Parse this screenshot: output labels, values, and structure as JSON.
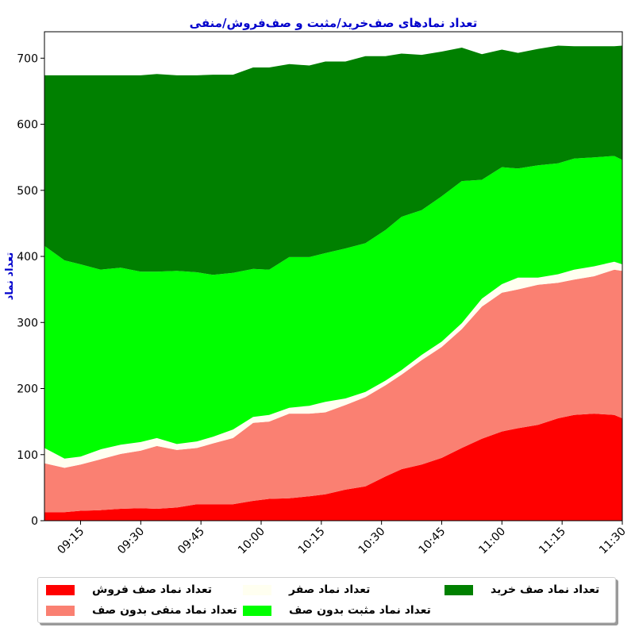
{
  "chart_data": {
    "type": "area",
    "stacked": true,
    "title": "تعداد نمادهای صف‌خرید/مثبت و صف‌فروش/منفی",
    "xlabel": "",
    "ylabel": "تعداد نماد",
    "ylim": [
      0,
      740
    ],
    "yticks": [
      0,
      100,
      200,
      300,
      400,
      500,
      600,
      700
    ],
    "xticks": [
      "09:15",
      "09:30",
      "09:45",
      "10:00",
      "10:15",
      "10:30",
      "10:45",
      "11:00",
      "11:15",
      "11:30"
    ],
    "x": [
      "09:06",
      "09:11",
      "09:15",
      "09:20",
      "09:25",
      "09:30",
      "09:34",
      "09:39",
      "09:44",
      "09:48",
      "09:53",
      "09:58",
      "10:02",
      "10:07",
      "10:12",
      "10:16",
      "10:21",
      "10:26",
      "10:31",
      "10:35",
      "10:40",
      "10:45",
      "10:50",
      "10:55",
      "11:00",
      "11:04",
      "11:09",
      "11:14",
      "11:18",
      "11:23",
      "11:28",
      "11:30"
    ],
    "series": [
      {
        "name": "تعداد نماد صف فروش",
        "color": "#ff0000",
        "values": [
          13,
          13,
          15,
          16,
          18,
          19,
          18,
          20,
          25,
          25,
          25,
          30,
          33,
          34,
          37,
          40,
          47,
          52,
          67,
          78,
          85,
          95,
          110,
          124,
          135,
          140,
          145,
          155,
          160,
          162,
          160,
          155
        ]
      },
      {
        "name": "تعداد نماد منفی بدون صف",
        "color": "#fa8072",
        "values": [
          74,
          67,
          70,
          77,
          83,
          87,
          95,
          87,
          85,
          92,
          100,
          118,
          117,
          128,
          125,
          124,
          128,
          135,
          138,
          143,
          158,
          168,
          180,
          200,
          210,
          210,
          212,
          205,
          205,
          208,
          220,
          223
        ]
      },
      {
        "name": "تعداد نماد صفر",
        "color": "#fffff0",
        "values": [
          23,
          14,
          12,
          15,
          14,
          13,
          12,
          9,
          10,
          10,
          13,
          9,
          10,
          9,
          12,
          16,
          10,
          8,
          7,
          7,
          8,
          8,
          9,
          12,
          13,
          18,
          11,
          13,
          15,
          15,
          12,
          10
        ]
      },
      {
        "name": "تعداد نماد مثبت بدون صف",
        "color": "#00ff00",
        "values": [
          306,
          300,
          291,
          272,
          268,
          258,
          252,
          262,
          256,
          245,
          237,
          224,
          220,
          228,
          225,
          225,
          227,
          225,
          228,
          232,
          219,
          220,
          215,
          180,
          177,
          165,
          170,
          168,
          168,
          165,
          160,
          158
        ]
      },
      {
        "name": "تعداد نماد صف خرید",
        "color": "#008000",
        "values": [
          258,
          280,
          286,
          294,
          291,
          297,
          299,
          296,
          298,
          303,
          300,
          305,
          306,
          292,
          290,
          290,
          283,
          283,
          263,
          247,
          235,
          219,
          202,
          190,
          178,
          175,
          176,
          178,
          170,
          168,
          166,
          173
        ]
      }
    ],
    "legend": {
      "position": "bottom",
      "items": [
        {
          "label": "تعداد نماد صف فروش",
          "color": "#ff0000"
        },
        {
          "label": "تعداد نماد صفر",
          "color": "#fffff0"
        },
        {
          "label": "تعداد نماد صف خرید",
          "color": "#008000"
        },
        {
          "label": "تعداد نماد منفی بدون صف",
          "color": "#fa8072"
        },
        {
          "label": "تعداد نماد مثبت بدون صف",
          "color": "#00ff00"
        }
      ]
    }
  }
}
